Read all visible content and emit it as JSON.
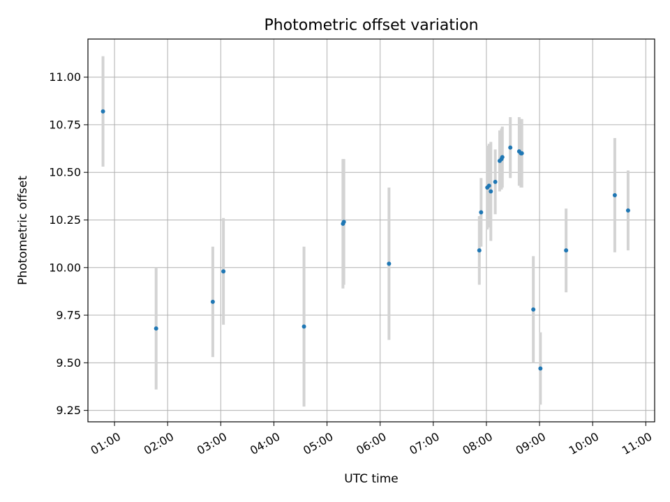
{
  "chart_data": {
    "type": "scatter",
    "title": "Photometric offset variation",
    "xlabel": "UTC time",
    "ylabel": "Photometric offset",
    "xlim": [
      "00:30",
      "11:10"
    ],
    "ylim": [
      9.19,
      11.2
    ],
    "grid": true,
    "xticks": [
      "01:00",
      "02:00",
      "03:00",
      "04:00",
      "05:00",
      "06:00",
      "07:00",
      "08:00",
      "09:00",
      "10:00",
      "11:00"
    ],
    "yticks": [
      "9.25",
      "9.50",
      "9.75",
      "10.00",
      "10.25",
      "10.50",
      "10.75",
      "11.00"
    ],
    "marker_color": "#1f77b4",
    "errorbar_color": "#d3d3d3",
    "points": [
      {
        "t": "00:47",
        "y": 10.82,
        "err": 0.29
      },
      {
        "t": "01:47",
        "y": 9.68,
        "err": 0.32
      },
      {
        "t": "02:51",
        "y": 9.82,
        "err": 0.29
      },
      {
        "t": "03:03",
        "y": 9.98,
        "err": 0.28
      },
      {
        "t": "04:34",
        "y": 9.69,
        "err": 0.42
      },
      {
        "t": "05:18",
        "y": 10.23,
        "err": 0.34
      },
      {
        "t": "05:19",
        "y": 10.24,
        "err": 0.33
      },
      {
        "t": "06:10",
        "y": 10.02,
        "err": 0.4
      },
      {
        "t": "07:52",
        "y": 10.09,
        "err": 0.18
      },
      {
        "t": "07:54",
        "y": 10.29,
        "err": 0.18
      },
      {
        "t": "08:01",
        "y": 10.42,
        "err": 0.22
      },
      {
        "t": "08:03",
        "y": 10.43,
        "err": 0.22
      },
      {
        "t": "08:05",
        "y": 10.4,
        "err": 0.26
      },
      {
        "t": "08:10",
        "y": 10.45,
        "err": 0.17
      },
      {
        "t": "08:15",
        "y": 10.56,
        "err": 0.16
      },
      {
        "t": "08:17",
        "y": 10.57,
        "err": 0.16
      },
      {
        "t": "08:18",
        "y": 10.58,
        "err": 0.16
      },
      {
        "t": "08:27",
        "y": 10.63,
        "err": 0.16
      },
      {
        "t": "08:37",
        "y": 10.61,
        "err": 0.18
      },
      {
        "t": "08:39",
        "y": 10.6,
        "err": 0.18
      },
      {
        "t": "08:40",
        "y": 10.6,
        "err": 0.18
      },
      {
        "t": "08:53",
        "y": 9.78,
        "err": 0.28
      },
      {
        "t": "09:01",
        "y": 9.47,
        "err": 0.19
      },
      {
        "t": "09:30",
        "y": 10.09,
        "err": 0.22
      },
      {
        "t": "10:25",
        "y": 10.38,
        "err": 0.3
      },
      {
        "t": "10:40",
        "y": 10.3,
        "err": 0.21
      }
    ]
  }
}
